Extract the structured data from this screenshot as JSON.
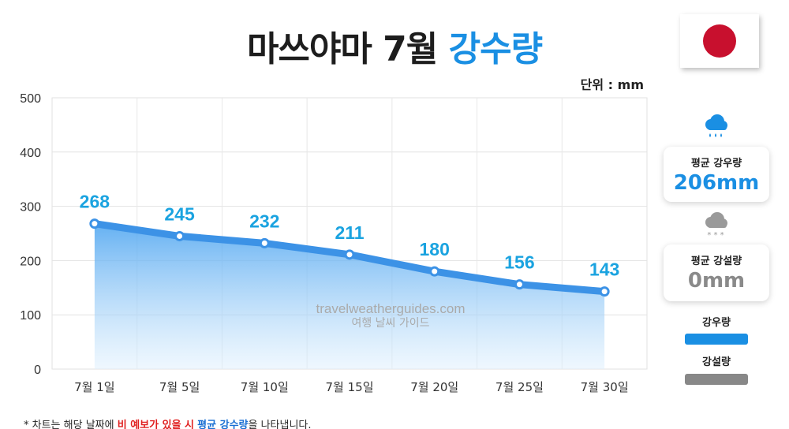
{
  "header": {
    "title_main": "마쓰야마 7월",
    "title_accent": "강수량",
    "unit": "단위 : mm"
  },
  "flag": {
    "icon": "japan-flag-icon",
    "disc_color": "#c8102e"
  },
  "chart_data": {
    "type": "area",
    "categories": [
      "7월 1일",
      "7월 5일",
      "7월 10일",
      "7월 15일",
      "7월 20일",
      "7월 25일",
      "7월 30일"
    ],
    "values": [
      268,
      245,
      232,
      211,
      180,
      156,
      143
    ],
    "ylim": [
      0,
      500
    ],
    "yticks": [
      0,
      100,
      200,
      300,
      400,
      500
    ],
    "xlabel": "",
    "ylabel": "",
    "grid": true,
    "line_color": "#3c92e6",
    "label_color": "#1aa3e0"
  },
  "watermark": {
    "line1": "travelweatherguides.com",
    "line2": "여행 날씨 가이드"
  },
  "sidebar": {
    "rain_icon": "rain-cloud-icon",
    "rain_label": "평균 강우량",
    "rain_value": "206mm",
    "snow_icon": "snow-cloud-icon",
    "snow_label": "평균 강설량",
    "snow_value": "0mm",
    "legend_rain_label": "강우량",
    "legend_rain_color": "#1a8fe3",
    "legend_snow_label": "강설량",
    "legend_snow_color": "#888888"
  },
  "footnote": {
    "prefix": "* 차트는 해당 날짜에 ",
    "red": "비 예보가 있을 시",
    "space": " ",
    "blue": "평균 강수량",
    "suffix": "을 나타냅니다."
  }
}
